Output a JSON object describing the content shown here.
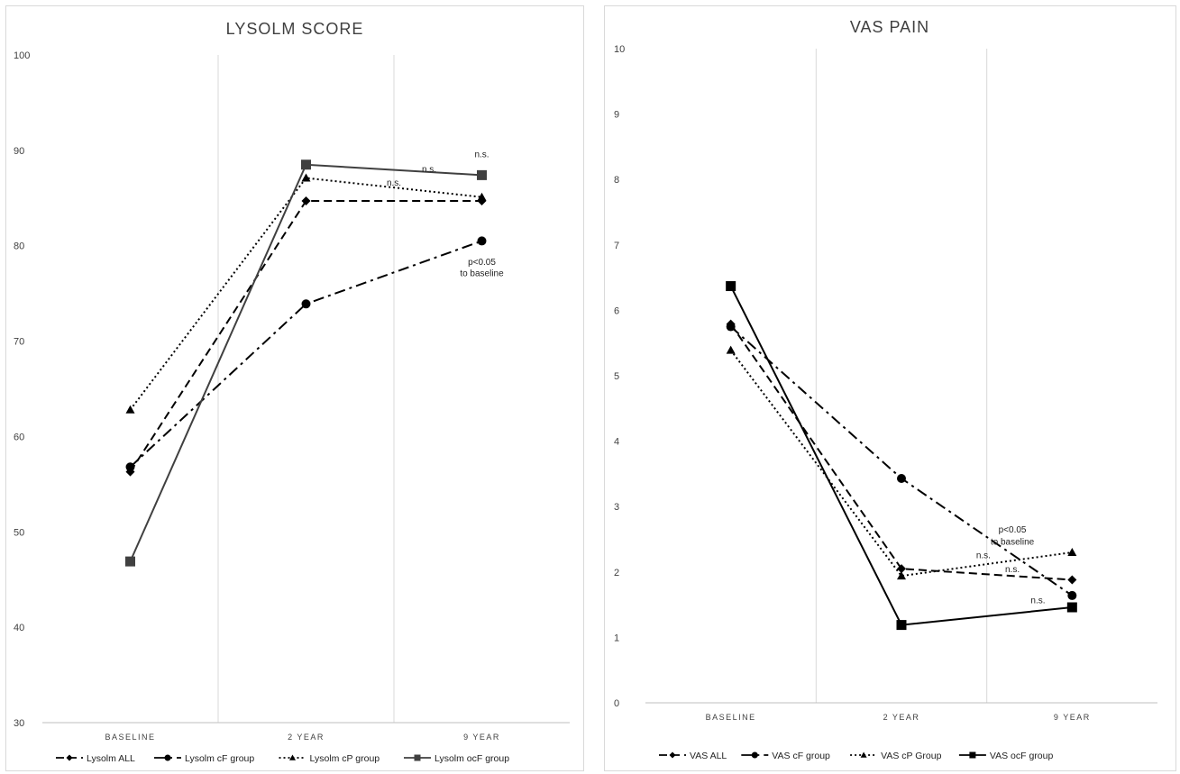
{
  "charts": [
    {
      "type": "line",
      "title": "LYSOLM SCORE",
      "categories": [
        "BASELINE",
        "2 YEAR",
        "9 YEAR"
      ],
      "ylim": [
        30,
        100
      ],
      "yticks": [
        30,
        40,
        50,
        60,
        70,
        80,
        90,
        100
      ],
      "grid": "vertical separators between categories",
      "legend_position": "bottom",
      "series": [
        {
          "name": "Lysolm ALL",
          "values": [
            56.3,
            84.7,
            84.7
          ],
          "color": "#000000",
          "dash": "dashed",
          "marker": "diamond"
        },
        {
          "name": "Lysolm cF group",
          "values": [
            56.8,
            73.9,
            80.5
          ],
          "color": "#000000",
          "dash": "dashdot",
          "marker": "circle"
        },
        {
          "name": "Lysolm cP group",
          "values": [
            62.8,
            87.1,
            85.1
          ],
          "color": "#000000",
          "dash": "dotted",
          "marker": "triangle"
        },
        {
          "name": "Lysolm ocF group",
          "values": [
            46.9,
            88.5,
            87.4
          ],
          "color": "#404040",
          "dash": "solid",
          "marker": "square"
        }
      ],
      "annotations": [
        {
          "text": "n.s.",
          "x": 2.0,
          "y": 89.3
        },
        {
          "text": "n.s.",
          "x": 1.7,
          "y": 87.7
        },
        {
          "text": "n.s.",
          "x": 1.5,
          "y": 86.3
        },
        {
          "text": "p<0.05",
          "x": 2.0,
          "y": 78.0
        },
        {
          "text": "to baseline",
          "x": 2.0,
          "y": 76.8
        }
      ]
    },
    {
      "type": "line",
      "title": "VAS PAIN",
      "categories": [
        "BASELINE",
        "2 YEAR",
        "9 YEAR"
      ],
      "ylim": [
        0,
        10
      ],
      "yticks": [
        0,
        1,
        2,
        3,
        4,
        5,
        6,
        7,
        8,
        9,
        10
      ],
      "grid": "vertical separators between categories",
      "legend_position": "bottom",
      "series": [
        {
          "name": "VAS ALL",
          "values": [
            5.79,
            2.05,
            1.88
          ],
          "color": "#000000",
          "dash": "dashed",
          "marker": "diamond"
        },
        {
          "name": "VAS cF group",
          "values": [
            5.75,
            3.43,
            1.64
          ],
          "color": "#000000",
          "dash": "dashdot",
          "marker": "circle"
        },
        {
          "name": "VAS cP Group",
          "values": [
            5.39,
            1.94,
            2.3
          ],
          "color": "#000000",
          "dash": "dotted",
          "marker": "triangle"
        },
        {
          "name": "VAS ocF group",
          "values": [
            6.37,
            1.19,
            1.46
          ],
          "color": "#000000",
          "dash": "solid",
          "marker": "square"
        }
      ],
      "annotations": [
        {
          "text": "p<0.05",
          "x": 1.65,
          "y": 2.6
        },
        {
          "text": "to baseline",
          "x": 1.65,
          "y": 2.42
        },
        {
          "text": "n.s.",
          "x": 1.48,
          "y": 2.21
        },
        {
          "text": "n.s.",
          "x": 1.65,
          "y": 2.0
        },
        {
          "text": "n.s.",
          "x": 1.8,
          "y": 1.52
        }
      ]
    }
  ]
}
